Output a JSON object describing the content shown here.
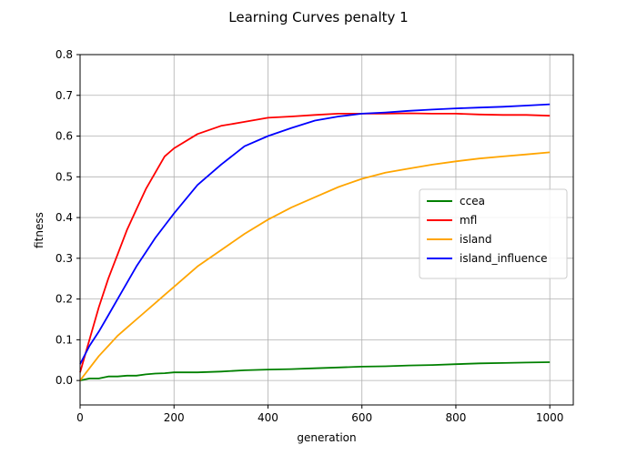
{
  "chart_data": {
    "type": "line",
    "title": "Learning Curves penalty 1",
    "xlabel": "generation",
    "ylabel": "fitness",
    "xlim": [
      0,
      1050
    ],
    "ylim": [
      -0.06,
      0.8
    ],
    "xticks": [
      0,
      200,
      400,
      600,
      800,
      1000
    ],
    "yticks": [
      0.0,
      0.1,
      0.2,
      0.3,
      0.4,
      0.5,
      0.6,
      0.7,
      0.8
    ],
    "grid": true,
    "legend_position": "center-right",
    "x": [
      0,
      20,
      40,
      60,
      80,
      100,
      120,
      140,
      160,
      180,
      200,
      250,
      300,
      350,
      400,
      450,
      500,
      550,
      600,
      650,
      700,
      750,
      800,
      850,
      900,
      950,
      1000
    ],
    "series": [
      {
        "name": "ccea",
        "color": "#008000",
        "values": [
          0.0,
          0.005,
          0.005,
          0.01,
          0.01,
          0.012,
          0.012,
          0.015,
          0.017,
          0.018,
          0.02,
          0.02,
          0.022,
          0.025,
          0.027,
          0.028,
          0.03,
          0.032,
          0.034,
          0.035,
          0.037,
          0.038,
          0.04,
          0.042,
          0.043,
          0.044,
          0.045
        ]
      },
      {
        "name": "mfl",
        "color": "#ff0000",
        "values": [
          0.02,
          0.1,
          0.18,
          0.25,
          0.31,
          0.37,
          0.42,
          0.47,
          0.51,
          0.55,
          0.57,
          0.605,
          0.625,
          0.635,
          0.645,
          0.648,
          0.652,
          0.655,
          0.655,
          0.655,
          0.656,
          0.655,
          0.655,
          0.653,
          0.652,
          0.652,
          0.65
        ]
      },
      {
        "name": "island",
        "color": "#ffa500",
        "values": [
          0.0,
          0.03,
          0.06,
          0.085,
          0.11,
          0.13,
          0.15,
          0.17,
          0.19,
          0.21,
          0.23,
          0.28,
          0.32,
          0.36,
          0.395,
          0.425,
          0.45,
          0.475,
          0.495,
          0.51,
          0.52,
          0.53,
          0.538,
          0.545,
          0.55,
          0.555,
          0.56
        ]
      },
      {
        "name": "island_influence",
        "color": "#0000ff",
        "values": [
          0.04,
          0.085,
          0.12,
          0.16,
          0.2,
          0.24,
          0.28,
          0.315,
          0.35,
          0.38,
          0.41,
          0.48,
          0.53,
          0.575,
          0.6,
          0.62,
          0.638,
          0.648,
          0.655,
          0.658,
          0.662,
          0.665,
          0.668,
          0.67,
          0.672,
          0.675,
          0.678
        ]
      }
    ]
  }
}
